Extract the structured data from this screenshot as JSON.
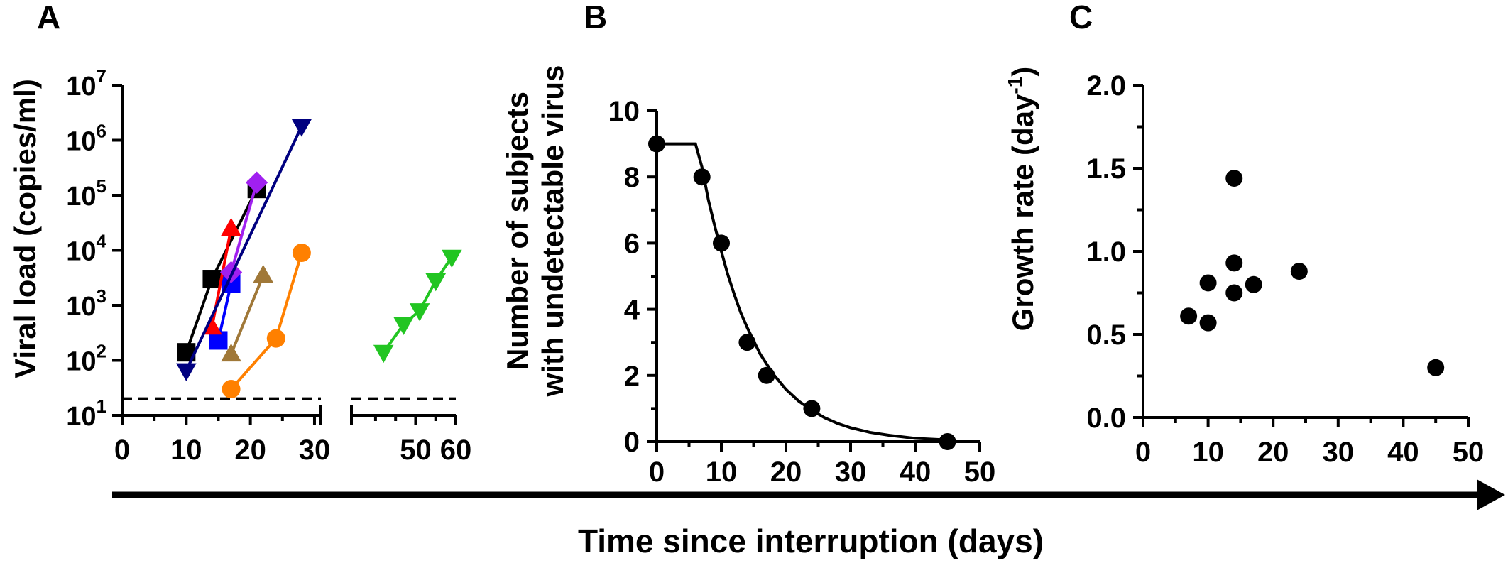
{
  "xlabel": "Time since interruption (days)",
  "chart_data": [
    {
      "panel": "A",
      "type": "line",
      "ylabel": "Viral load (copies/ml)",
      "yscale": "log",
      "ylim": [
        10,
        10000000
      ],
      "yticks": [
        {
          "base": "10",
          "exp": "1"
        },
        {
          "base": "10",
          "exp": "2"
        },
        {
          "base": "10",
          "exp": "3"
        },
        {
          "base": "10",
          "exp": "4"
        },
        {
          "base": "10",
          "exp": "5"
        },
        {
          "base": "10",
          "exp": "6"
        },
        {
          "base": "10",
          "exp": "7"
        }
      ],
      "xaxis_broken": true,
      "xlim_left": [
        0,
        31
      ],
      "xlim_right": [
        34,
        60
      ],
      "xticks": [
        "0",
        "10",
        "20",
        "30",
        "50",
        "60"
      ],
      "detection_limit": 20,
      "series": [
        {
          "color": "#000000",
          "marker": "square",
          "x": [
            10,
            14,
            21
          ],
          "y": [
            140,
            3000,
            130000
          ]
        },
        {
          "color": "#0000ff",
          "marker": "square",
          "x": [
            15,
            17
          ],
          "y": [
            230,
            2500
          ]
        },
        {
          "color": "#ff0000",
          "marker": "triangle-up",
          "x": [
            14,
            17
          ],
          "y": [
            400,
            25000
          ]
        },
        {
          "color": "#a020f0",
          "marker": "diamond",
          "x": [
            17,
            21
          ],
          "y": [
            4000,
            170000
          ]
        },
        {
          "color": "#000080",
          "marker": "triangle-down",
          "x": [
            10,
            28
          ],
          "y": [
            65,
            1800000
          ]
        },
        {
          "color": "#a07838",
          "marker": "triangle-up",
          "x": [
            17,
            22
          ],
          "y": [
            130,
            3500
          ]
        },
        {
          "color": "#ff8000",
          "marker": "circle",
          "x": [
            17,
            24,
            28
          ],
          "y": [
            30,
            250,
            9000
          ]
        },
        {
          "color": "#22c522",
          "marker": "triangle-down",
          "x": [
            42,
            47,
            51,
            55,
            59
          ],
          "y": [
            140,
            450,
            800,
            2800,
            7500
          ]
        }
      ]
    },
    {
      "panel": "B",
      "type": "scatter",
      "ylabel_lines": [
        "Number of subjects",
        "with undetectable virus"
      ],
      "xlim": [
        0,
        50
      ],
      "ylim": [
        0,
        10
      ],
      "xticks": [
        "0",
        "10",
        "20",
        "30",
        "40",
        "50"
      ],
      "yticks": [
        "0",
        "2",
        "4",
        "6",
        "8",
        "10"
      ],
      "points": {
        "x": [
          0,
          7,
          10,
          14,
          17,
          24,
          45
        ],
        "y": [
          9,
          8,
          6,
          3,
          2,
          1,
          0
        ]
      },
      "fit_curve": {
        "x": [
          0,
          6,
          7,
          8,
          9,
          10,
          11,
          12,
          13,
          14,
          16,
          18,
          20,
          22,
          24,
          26,
          28,
          30,
          33,
          36,
          40,
          45
        ],
        "y": [
          9,
          9,
          8.3,
          7.3,
          6.5,
          5.75,
          5.05,
          4.45,
          3.9,
          3.45,
          2.65,
          2.05,
          1.58,
          1.22,
          0.95,
          0.72,
          0.55,
          0.42,
          0.28,
          0.19,
          0.1,
          0.05
        ]
      }
    },
    {
      "panel": "C",
      "type": "scatter",
      "ylabel_main": "Growth rate (day",
      "ylabel_sup": "-1",
      "ylabel_end": ")",
      "xlim": [
        0,
        50
      ],
      "ylim": [
        0,
        2
      ],
      "xticks": [
        "0",
        "10",
        "20",
        "30",
        "40",
        "50"
      ],
      "yticks": [
        "0.0",
        "0.5",
        "1.0",
        "1.5",
        "2.0"
      ],
      "points": {
        "x": [
          7,
          10,
          10,
          14,
          14,
          14,
          17,
          24,
          45
        ],
        "y": [
          0.61,
          0.57,
          0.81,
          1.44,
          0.93,
          0.75,
          0.8,
          0.88,
          0.3
        ]
      }
    }
  ]
}
